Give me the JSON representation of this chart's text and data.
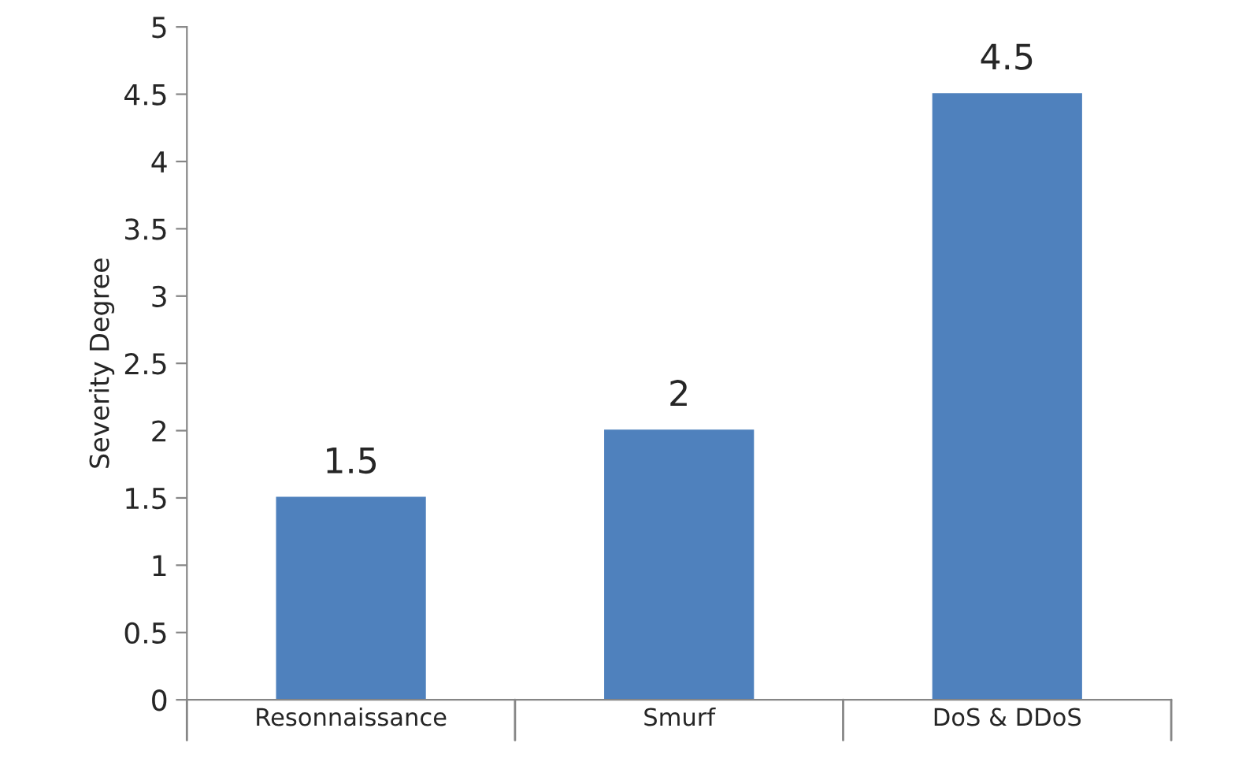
{
  "chart_data": {
    "type": "bar",
    "ylabel": "Severity Degree",
    "categories": [
      "Resonnaissance",
      "Smurf",
      "DoS & DDoS"
    ],
    "values": [
      1.5,
      2,
      4.5
    ],
    "color": "#4f81bd",
    "ylim": [
      0,
      5
    ],
    "yticks": [
      0,
      0.5,
      1,
      1.5,
      2,
      2.5,
      3,
      3.5,
      4,
      4.5,
      5
    ],
    "data_labels": true,
    "grid": false,
    "legend": false
  }
}
